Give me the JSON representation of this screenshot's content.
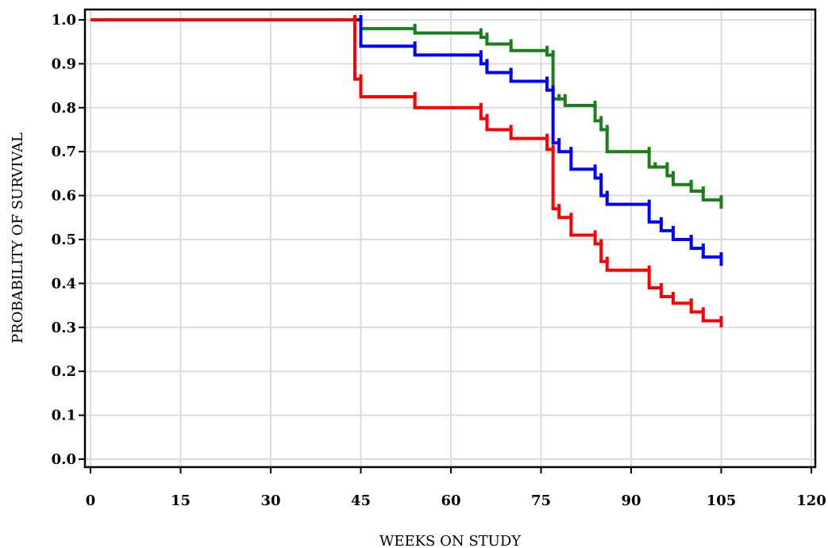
{
  "chart_data": {
    "type": "line",
    "step": true,
    "xlabel": "WEEKS ON STUDY",
    "ylabel": "PROBABILITY OF SURVIVAL",
    "xlim": [
      0,
      120
    ],
    "ylim": [
      0,
      1.0
    ],
    "xticks": [
      "0",
      "15",
      "30",
      "45",
      "60",
      "75",
      "90",
      "105",
      "120"
    ],
    "yticks": [
      "0.0",
      "0.1",
      "0.2",
      "0.3",
      "0.4",
      "0.5",
      "0.6",
      "0.7",
      "0.8",
      "0.9",
      "1.0"
    ],
    "grid": true,
    "series": [
      {
        "color": "#1a7f1a",
        "x": [
          0,
          44,
          45,
          54,
          65,
          66,
          70,
          76,
          77,
          78,
          79,
          84,
          85,
          86,
          93,
          94,
          96,
          97,
          100,
          102,
          105
        ],
        "y": [
          1.0,
          1.0,
          0.98,
          0.97,
          0.96,
          0.945,
          0.93,
          0.92,
          0.82,
          0.82,
          0.805,
          0.77,
          0.75,
          0.7,
          0.665,
          0.665,
          0.645,
          0.625,
          0.61,
          0.59,
          0.57
        ]
      },
      {
        "color": "#0000ff",
        "x": [
          0,
          44,
          45,
          54,
          65,
          66,
          70,
          76,
          77,
          78,
          80,
          84,
          85,
          86,
          93,
          95,
          97,
          100,
          102,
          105
        ],
        "y": [
          1.0,
          1.0,
          0.94,
          0.92,
          0.9,
          0.88,
          0.86,
          0.84,
          0.72,
          0.7,
          0.66,
          0.64,
          0.6,
          0.58,
          0.54,
          0.52,
          0.5,
          0.48,
          0.46,
          0.44
        ]
      },
      {
        "color": "#ff0000",
        "x": [
          0,
          44,
          45,
          54,
          65,
          66,
          70,
          76,
          77,
          78,
          80,
          84,
          85,
          86,
          93,
          95,
          97,
          100,
          102,
          105
        ],
        "y": [
          1.0,
          0.865,
          0.825,
          0.8,
          0.775,
          0.75,
          0.73,
          0.705,
          0.57,
          0.55,
          0.51,
          0.49,
          0.45,
          0.43,
          0.39,
          0.37,
          0.355,
          0.335,
          0.315,
          0.3
        ]
      }
    ]
  }
}
